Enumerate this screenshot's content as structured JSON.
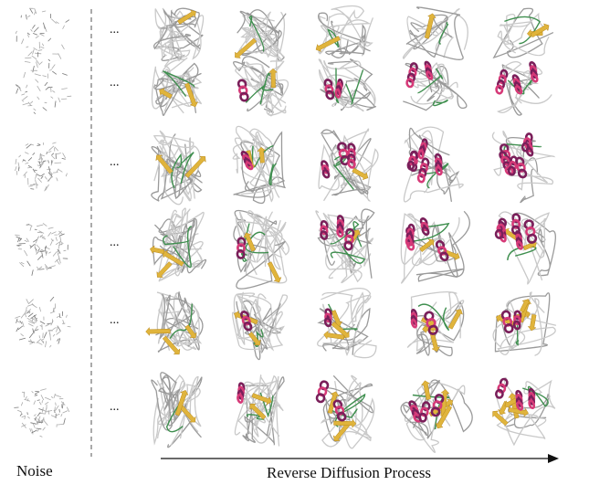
{
  "labels": {
    "noise": "Noise",
    "process": "Reverse Diffusion Process",
    "ellipsis": "..."
  },
  "colors": {
    "coil": "#c9c9c9",
    "coil_dark": "#9a9a9a",
    "strand": "#e0b43c",
    "loop": "#3f8f4f",
    "helix": "#d63a78",
    "helix_dark": "#7a1f5a"
  },
  "rows": [
    {
      "id": "row-1",
      "steps": [
        {
          "h": 0,
          "s": 1,
          "l": 0
        },
        {
          "h": 0,
          "s": 1,
          "l": 1
        },
        {
          "h": 0,
          "s": 1,
          "l": 1
        },
        {
          "h": 0,
          "s": 1,
          "l": 1
        },
        {
          "h": 0,
          "s": 2,
          "l": 1
        }
      ]
    },
    {
      "id": "row-2",
      "steps": [
        {
          "h": 0,
          "s": 2,
          "l": 1
        },
        {
          "h": 1,
          "s": 1,
          "l": 2
        },
        {
          "h": 2,
          "s": 0,
          "l": 2
        },
        {
          "h": 2,
          "s": 0,
          "l": 2
        },
        {
          "h": 3,
          "s": 0,
          "l": 1
        }
      ]
    },
    {
      "id": "row-3",
      "steps": [
        {
          "h": 0,
          "s": 2,
          "l": 2
        },
        {
          "h": 1,
          "s": 2,
          "l": 2
        },
        {
          "h": 3,
          "s": 1,
          "l": 2
        },
        {
          "h": 5,
          "s": 0,
          "l": 1
        },
        {
          "h": 6,
          "s": 0,
          "l": 1
        }
      ]
    },
    {
      "id": "row-4",
      "steps": [
        {
          "h": 0,
          "s": 3,
          "l": 2
        },
        {
          "h": 1,
          "s": 2,
          "l": 2
        },
        {
          "h": 3,
          "s": 1,
          "l": 2
        },
        {
          "h": 4,
          "s": 2,
          "l": 1
        },
        {
          "h": 5,
          "s": 2,
          "l": 1
        }
      ]
    },
    {
      "id": "row-5",
      "steps": [
        {
          "h": 0,
          "s": 3,
          "l": 1
        },
        {
          "h": 1,
          "s": 2,
          "l": 1
        },
        {
          "h": 1,
          "s": 3,
          "l": 1
        },
        {
          "h": 2,
          "s": 4,
          "l": 1
        },
        {
          "h": 2,
          "s": 5,
          "l": 1
        }
      ]
    },
    {
      "id": "row-6",
      "steps": [
        {
          "h": 0,
          "s": 2,
          "l": 1
        },
        {
          "h": 1,
          "s": 2,
          "l": 2
        },
        {
          "h": 2,
          "s": 3,
          "l": 2
        },
        {
          "h": 3,
          "s": 4,
          "l": 1
        },
        {
          "h": 3,
          "s": 5,
          "l": 1
        }
      ]
    }
  ]
}
